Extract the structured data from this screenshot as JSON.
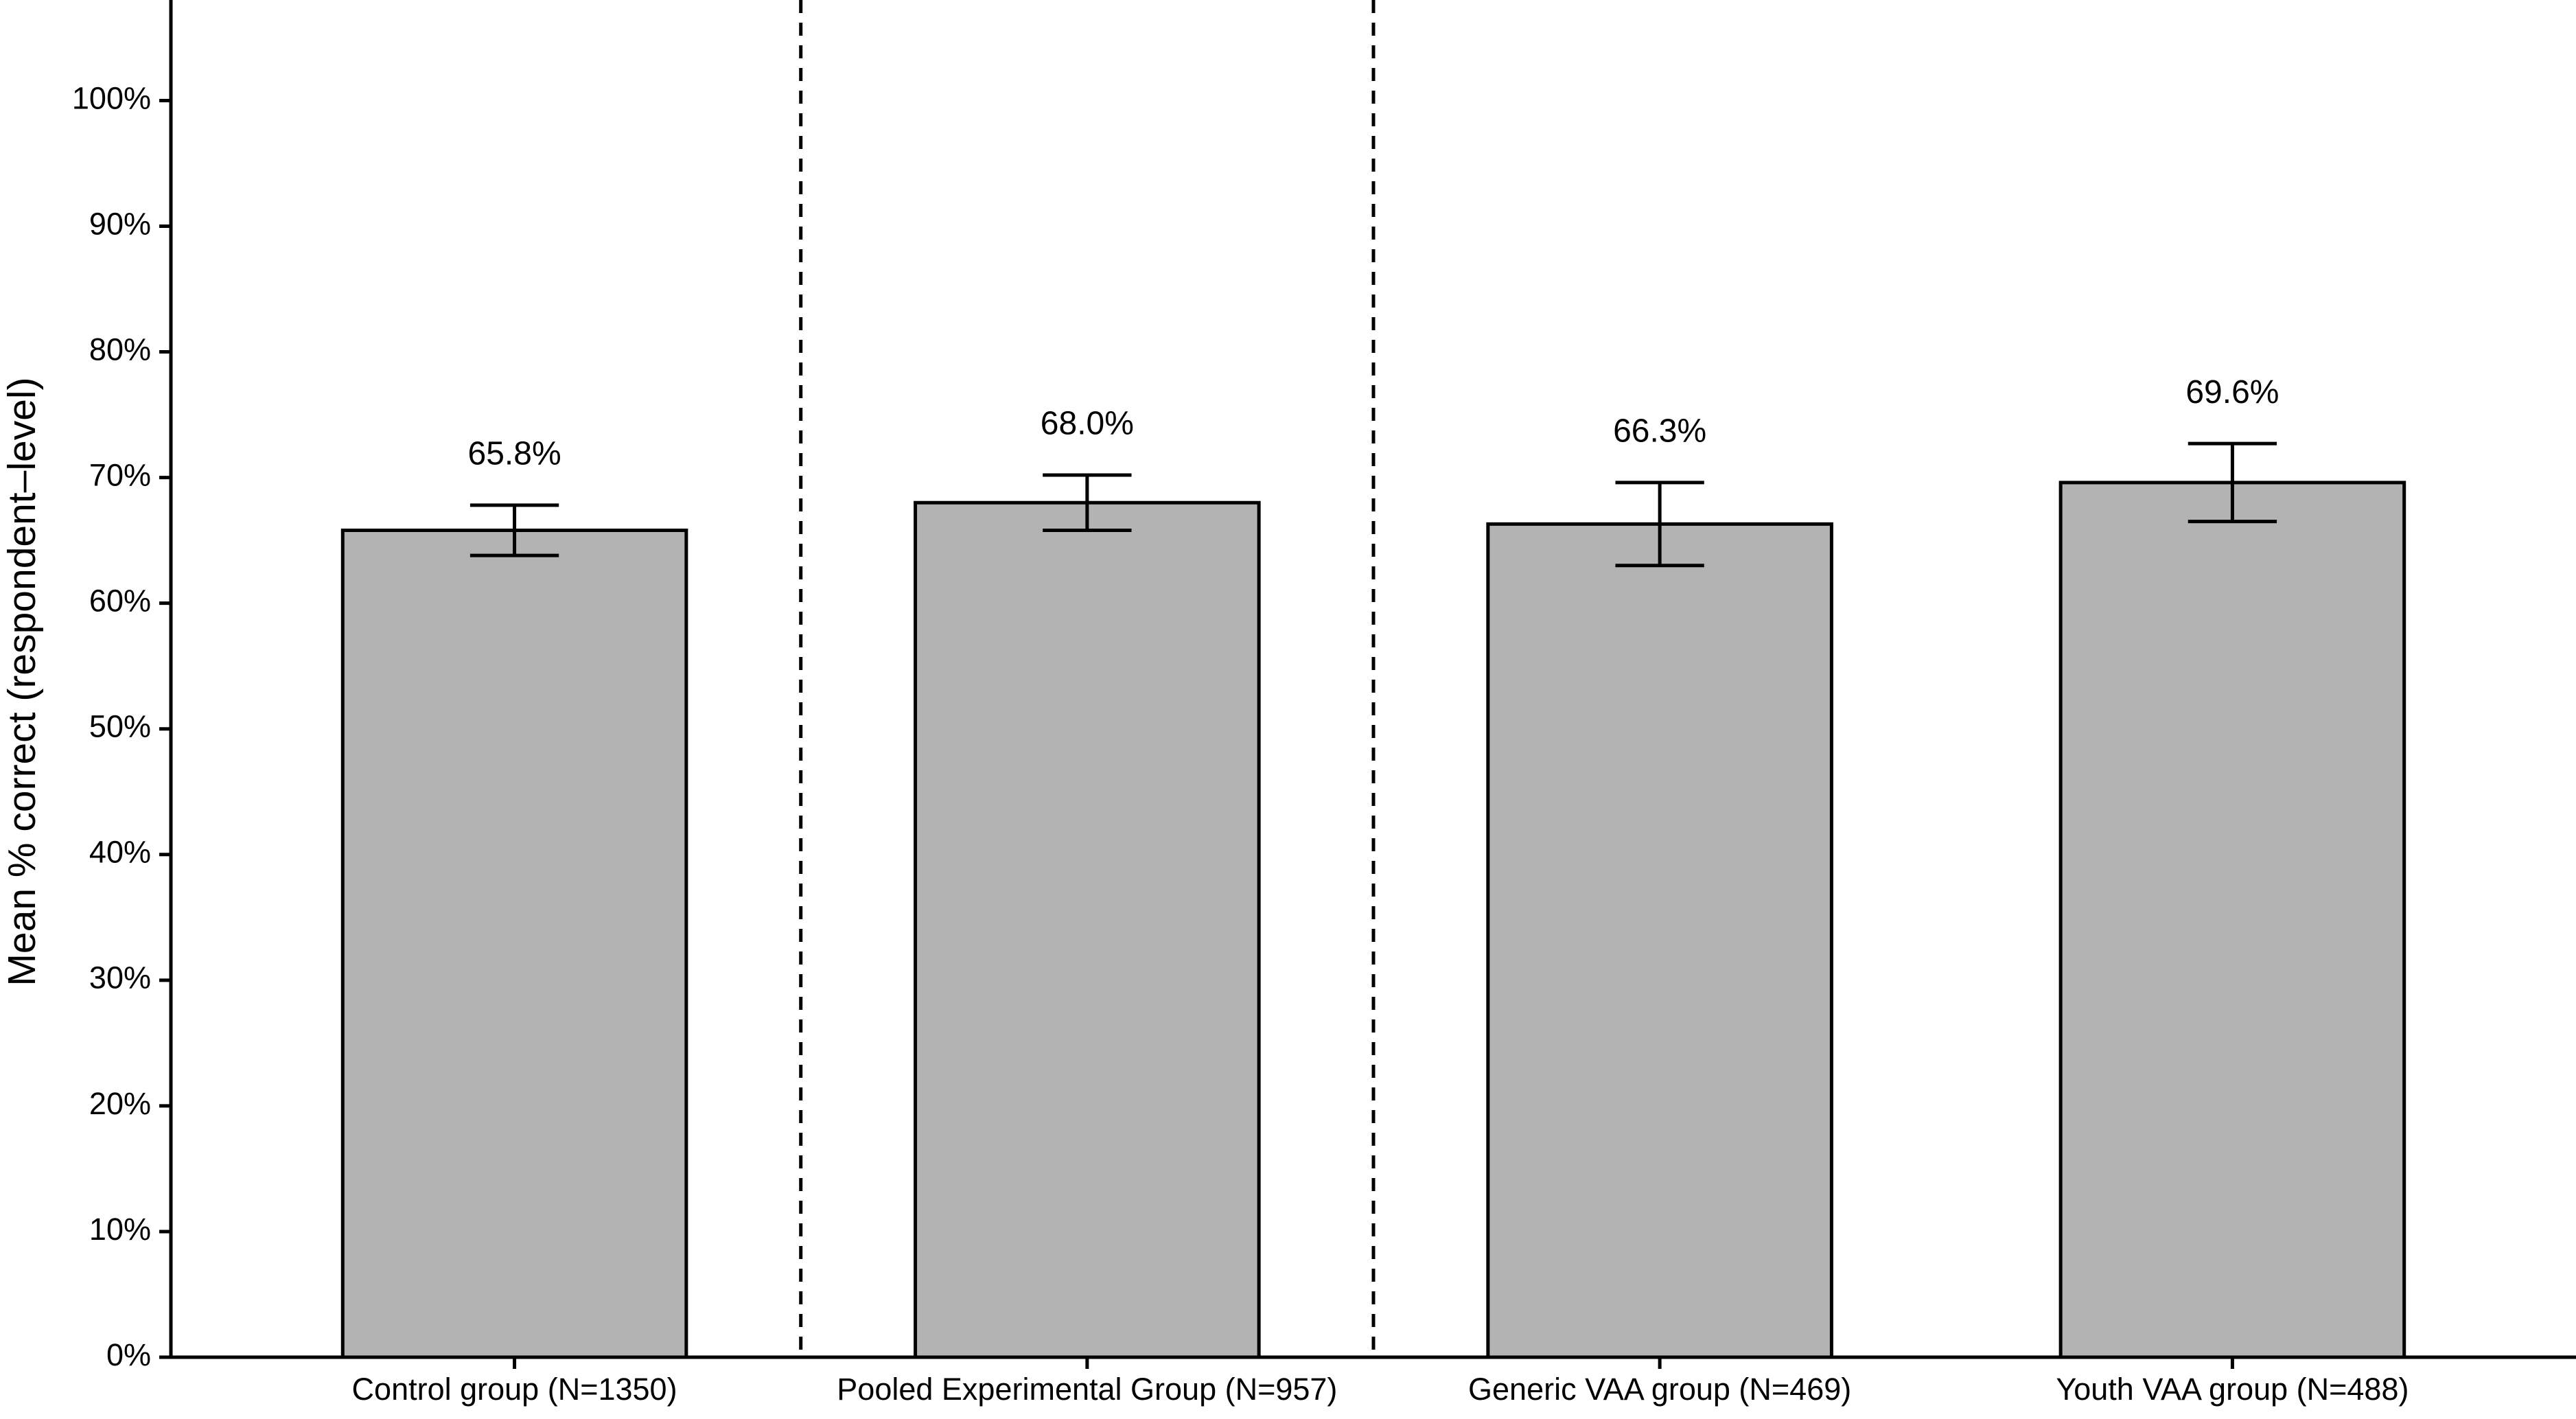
{
  "chart_data": {
    "type": "bar",
    "y_label": "Mean % correct (respondent–level)",
    "categories": [
      "Control group (N=1350)",
      "Pooled Experimental Group (N=957)",
      "Generic VAA group (N=469)",
      "Youth VAA group (N=488)"
    ],
    "values": [
      65.8,
      68.0,
      66.3,
      69.6
    ],
    "value_labels": [
      "65.8%",
      "68.0%",
      "66.3%",
      "69.6%"
    ],
    "errors": [
      2.0,
      2.2,
      3.3,
      3.1
    ],
    "color": "#b3b3b3",
    "ylim": [
      0,
      108
    ],
    "yticks": [
      {
        "value": 0,
        "label": "0%"
      },
      {
        "value": 10,
        "label": "10%"
      },
      {
        "value": 20,
        "label": "20%"
      },
      {
        "value": 30,
        "label": "30%"
      },
      {
        "value": 40,
        "label": "40%"
      },
      {
        "value": 50,
        "label": "50%"
      },
      {
        "value": 60,
        "label": "60%"
      },
      {
        "value": 70,
        "label": "70%"
      },
      {
        "value": 80,
        "label": "80%"
      },
      {
        "value": 90,
        "label": "90%"
      },
      {
        "value": 100,
        "label": "100%"
      }
    ],
    "grid": false
  }
}
